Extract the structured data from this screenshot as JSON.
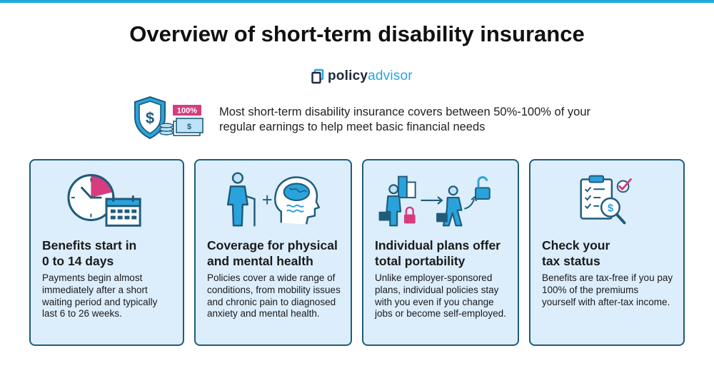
{
  "header": {
    "title": "Overview of short-term disability insurance",
    "logo_part1": "policy",
    "logo_part2": "advisor"
  },
  "hero": {
    "icon": "shield-dollar-icon",
    "badge": "100%",
    "text": "Most short-term disability insurance covers between 50%-100% of your regular earnings to help meet basic financial needs"
  },
  "cards": [
    {
      "icon": "clock-calendar-icon",
      "title_line1": "Benefits start in",
      "title_line2": "0 to 14 days",
      "body": "Payments begin almost immediately after a short waiting period and typically last 6 to 26 weeks."
    },
    {
      "icon": "person-plus-brain-icon",
      "title_line1": "Coverage for physical",
      "title_line2": "and mental health",
      "body": "Policies cover a wide range of conditions, from mobility issues and chronic pain to diagnosed anxiety and mental health."
    },
    {
      "icon": "portability-icon",
      "title_line1": "Individual plans offer",
      "title_line2": "total portability",
      "body": "Unlike employer-sponsored plans, individual policies stay with you even if you change jobs or become self-employed."
    },
    {
      "icon": "tax-checklist-icon",
      "title_line1": "Check your",
      "title_line2": "tax status",
      "body": "Benefits are tax-free if you pay 100% of the premiums yourself with after-tax income."
    }
  ],
  "colors": {
    "accent": "#1fa9e1",
    "card_background": "#dcedfb",
    "card_border": "#1f5c7b",
    "highlight": "#d63c7e"
  }
}
